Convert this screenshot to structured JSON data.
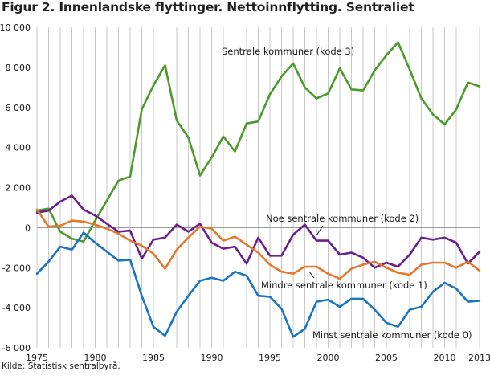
{
  "title": "Figur 2. Innenlandske flyttinger. Nettoinnflytting. Sentraliet",
  "source": "Kilde: Statistisk sentralbyrå.",
  "chart_data": {
    "type": "line",
    "x": [
      1975,
      1976,
      1977,
      1978,
      1979,
      1980,
      1981,
      1982,
      1983,
      1984,
      1985,
      1986,
      1987,
      1988,
      1989,
      1990,
      1991,
      1992,
      1993,
      1994,
      1995,
      1996,
      1997,
      1998,
      1999,
      2000,
      2001,
      2002,
      2003,
      2004,
      2005,
      2006,
      2007,
      2008,
      2009,
      2010,
      2011,
      2012,
      2013
    ],
    "xlim": [
      1975,
      2013
    ],
    "ylim": [
      -6000,
      10000
    ],
    "xticks": [
      1975,
      1980,
      1985,
      1990,
      1995,
      2000,
      2005,
      2010,
      2013
    ],
    "yticks": [
      -6000,
      -4000,
      -2000,
      0,
      2000,
      4000,
      6000,
      8000,
      10000
    ],
    "xtick_labels": [
      "1975",
      "1980",
      "1985",
      "1990",
      "1995",
      "2000",
      "2005",
      "2010",
      "2013"
    ],
    "ytick_labels": [
      "-6 000",
      "-4 000",
      "-2 000",
      "0",
      "2 000",
      "4 000",
      "6 000",
      "8 000",
      "10 000"
    ],
    "grid": "vertical lines each year",
    "series": [
      {
        "name": "Sentrale kommuner (kode 3)",
        "color": "#4c9a2a",
        "values": [
          850,
          950,
          -200,
          -550,
          -700,
          350,
          1350,
          2350,
          2550,
          5900,
          7100,
          8100,
          5350,
          4500,
          2600,
          3500,
          4550,
          3800,
          5200,
          5300,
          6650,
          7550,
          8200,
          7000,
          6450,
          6700,
          7950,
          6900,
          6850,
          7850,
          8600,
          9250,
          7900,
          6450,
          5650,
          5150,
          5900,
          7250,
          7050
        ]
      },
      {
        "name": "Noe sentrale kommuner (kode 2)",
        "color": "#6a1f8f",
        "values": [
          750,
          850,
          1300,
          1600,
          900,
          600,
          200,
          -200,
          -150,
          -1550,
          -600,
          -500,
          150,
          -200,
          200,
          -750,
          -1050,
          -950,
          -1800,
          -500,
          -1400,
          -1400,
          -350,
          150,
          -650,
          -650,
          -1350,
          -1250,
          -1500,
          -2000,
          -1750,
          -1950,
          -1350,
          -500,
          -600,
          -500,
          -750,
          -1800,
          -1200
        ]
      },
      {
        "name": "Mindre sentrale kommuner (kode 1)",
        "color": "#e5782d",
        "values": [
          900,
          50,
          100,
          350,
          300,
          150,
          -50,
          -300,
          -650,
          -900,
          -1300,
          -2050,
          -1100,
          -500,
          50,
          -50,
          -650,
          -450,
          -850,
          -1250,
          -1850,
          -2200,
          -2300,
          -1950,
          -1950,
          -2300,
          -2550,
          -2050,
          -1850,
          -1700,
          -2000,
          -2250,
          -2350,
          -1850,
          -1750,
          -1750,
          -2000,
          -1700,
          -2150
        ]
      },
      {
        "name": "Minst sentrale kommuner (kode 0)",
        "color": "#1a75c2",
        "values": [
          -2300,
          -1700,
          -950,
          -1100,
          -250,
          -750,
          -1200,
          -1650,
          -1600,
          -3400,
          -4950,
          -5400,
          -4200,
          -3400,
          -2650,
          -2500,
          -2650,
          -2200,
          -2400,
          -3400,
          -3450,
          -4050,
          -5450,
          -5050,
          -3700,
          -3600,
          -3950,
          -3550,
          -3550,
          -4100,
          -4750,
          -4950,
          -4100,
          -3950,
          -3200,
          -2750,
          -3050,
          -3700,
          -3650
        ]
      }
    ],
    "annotations": [
      "Sentrale kommuner (kode 3)",
      "Noe sentrale kommuner (kode 2)",
      "Mindre sentrale kommuner (kode 1)",
      "Minst sentrale kommuner (kode 0)"
    ]
  }
}
